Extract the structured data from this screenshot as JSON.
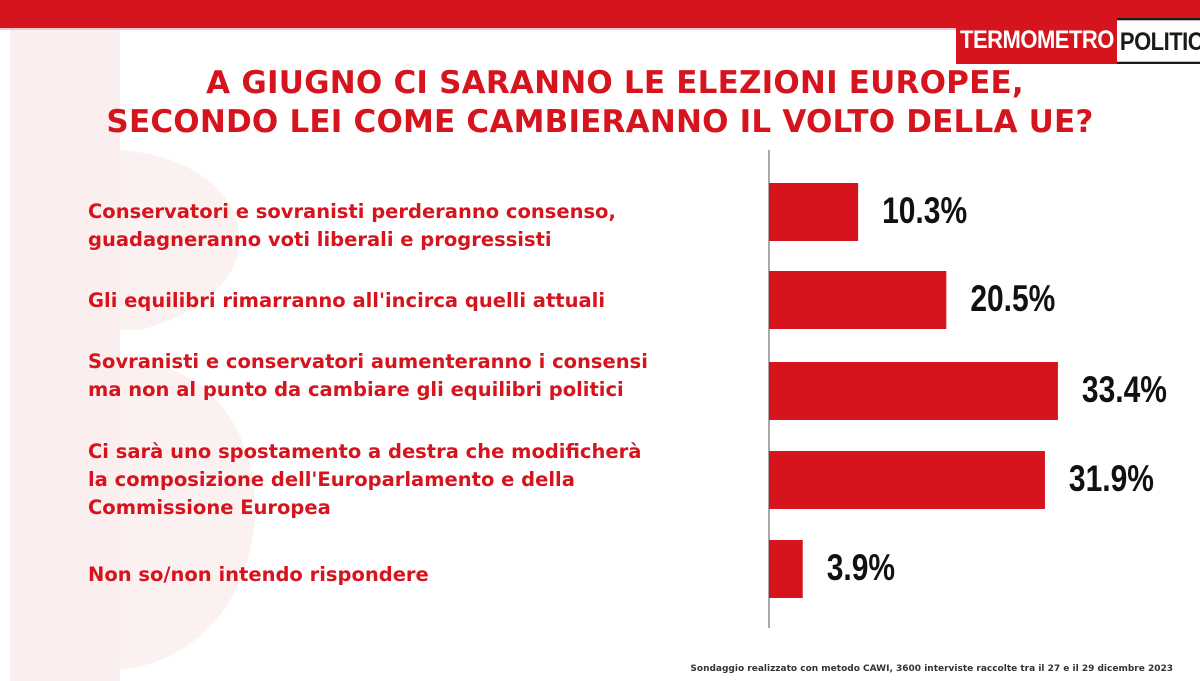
{
  "brand": {
    "part1": "TERMOMETRO",
    "part2": "POLITICO",
    "red": "#d6141d"
  },
  "title": {
    "line1": "A GIUGNO CI SARANNO LE ELEZIONI EUROPEE,",
    "line2": "SECONDO LEI COME CAMBIERANNO IL VOLTO DELLA UE?"
  },
  "chart_data": {
    "type": "bar",
    "orientation": "horizontal",
    "categories": [
      [
        "Conservatori e sovranisti perderanno consenso,",
        "guadagneranno voti liberali e progressisti"
      ],
      [
        "Gli equilibri rimarranno all'incirca quelli attuali"
      ],
      [
        "Sovranisti e conservatori aumenteranno i consensi",
        "ma non al punto da cambiare gli equilibri politici"
      ],
      [
        "Ci sarà  uno spostamento a destra che modificherà",
        "la composizione dell'Europarlamento e della",
        "Commissione Europea"
      ],
      [
        "Non so/non intendo rispondere"
      ]
    ],
    "values": [
      10.3,
      20.5,
      33.4,
      31.9,
      3.9
    ],
    "value_labels": [
      "10.3%",
      "20.5%",
      "33.4%",
      "31.9%",
      "3.9%"
    ],
    "bar_color": "#d6141d",
    "xlim": [
      0,
      35
    ],
    "grid": false
  },
  "footnote": "Sondaggio realizzato con metodo CAWI, 3600 interviste raccolte tra il 27 e il 29 dicembre 2023"
}
